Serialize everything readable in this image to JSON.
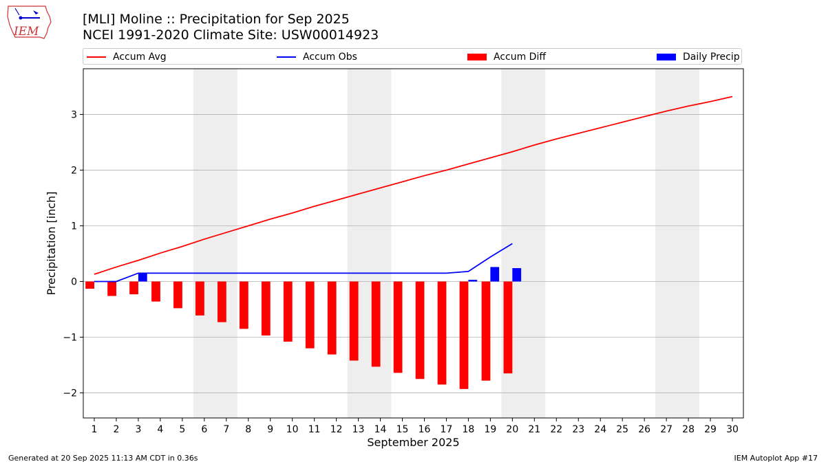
{
  "header": {
    "title_line1": "[MLI] Moline :: Precipitation for Sep 2025",
    "title_line2": "NCEI 1991-2020 Climate Site: USW00014923",
    "logo_text": "IEM"
  },
  "footer": {
    "left": "Generated at 20 Sep 2025 11:13 AM CDT in 0.36s",
    "right": "IEM Autoplot App #17"
  },
  "colors": {
    "accum_avg": "#ff0000",
    "accum_obs": "#0000ff",
    "accum_diff": "#ff0000",
    "daily_precip": "#0000ff",
    "weekend_shade": "#eeeeee",
    "grid": "#b0b0b0"
  },
  "chart_data": {
    "type": "bar",
    "xlabel": "September 2025",
    "ylabel": "Precipitation [inch]",
    "xlim": [
      0.5,
      30.5
    ],
    "ylim": [
      -2.45,
      3.82
    ],
    "yticks": [
      -2,
      -1,
      0,
      1,
      2,
      3
    ],
    "ytick_labels": [
      "−2",
      "−1",
      "0",
      "1",
      "2",
      "3"
    ],
    "grid": "horizontal",
    "legend_position": "top",
    "days": [
      1,
      2,
      3,
      4,
      5,
      6,
      7,
      8,
      9,
      10,
      11,
      12,
      13,
      14,
      15,
      16,
      17,
      18,
      19,
      20,
      21,
      22,
      23,
      24,
      25,
      26,
      27,
      28,
      29,
      30
    ],
    "weekend_spans": [
      [
        5.5,
        7.5
      ],
      [
        12.5,
        14.5
      ],
      [
        19.5,
        21.5
      ],
      [
        26.5,
        28.5
      ]
    ],
    "series": [
      {
        "name": "Accum Avg",
        "kind": "line",
        "x": [
          1,
          2,
          3,
          4,
          5,
          6,
          7,
          8,
          9,
          10,
          11,
          12,
          13,
          14,
          15,
          16,
          17,
          18,
          19,
          20,
          21,
          22,
          23,
          24,
          25,
          26,
          27,
          28,
          29,
          30
        ],
        "values": [
          0.13,
          0.26,
          0.38,
          0.51,
          0.63,
          0.76,
          0.88,
          1.0,
          1.12,
          1.23,
          1.35,
          1.46,
          1.57,
          1.68,
          1.79,
          1.9,
          2.0,
          2.11,
          2.22,
          2.33,
          2.45,
          2.56,
          2.66,
          2.76,
          2.86,
          2.96,
          3.06,
          3.15,
          3.23,
          3.32
        ]
      },
      {
        "name": "Accum Obs",
        "kind": "line",
        "x": [
          1,
          2,
          3,
          4,
          5,
          6,
          7,
          8,
          9,
          10,
          11,
          12,
          13,
          14,
          15,
          16,
          17,
          18,
          19,
          20
        ],
        "values": [
          0.0,
          0.0,
          0.15,
          0.15,
          0.15,
          0.15,
          0.15,
          0.15,
          0.15,
          0.15,
          0.15,
          0.15,
          0.15,
          0.15,
          0.15,
          0.15,
          0.15,
          0.18,
          0.44,
          0.68
        ]
      },
      {
        "name": "Accum Diff",
        "kind": "bar",
        "offset": -0.2,
        "x": [
          1,
          2,
          3,
          4,
          5,
          6,
          7,
          8,
          9,
          10,
          11,
          12,
          13,
          14,
          15,
          16,
          17,
          18,
          19,
          20
        ],
        "values": [
          -0.13,
          -0.26,
          -0.23,
          -0.36,
          -0.48,
          -0.61,
          -0.73,
          -0.85,
          -0.97,
          -1.08,
          -1.2,
          -1.31,
          -1.42,
          -1.53,
          -1.64,
          -1.75,
          -1.85,
          -1.93,
          -1.78,
          -1.65
        ]
      },
      {
        "name": "Daily Precip",
        "kind": "bar",
        "offset": 0.2,
        "x": [
          1,
          2,
          3,
          4,
          5,
          6,
          7,
          8,
          9,
          10,
          11,
          12,
          13,
          14,
          15,
          16,
          17,
          18,
          19,
          20
        ],
        "values": [
          0,
          0,
          0.15,
          0,
          0,
          0,
          0,
          0,
          0,
          0,
          0,
          0,
          0,
          0,
          0,
          0,
          0,
          0.03,
          0.26,
          0.24
        ]
      }
    ]
  }
}
